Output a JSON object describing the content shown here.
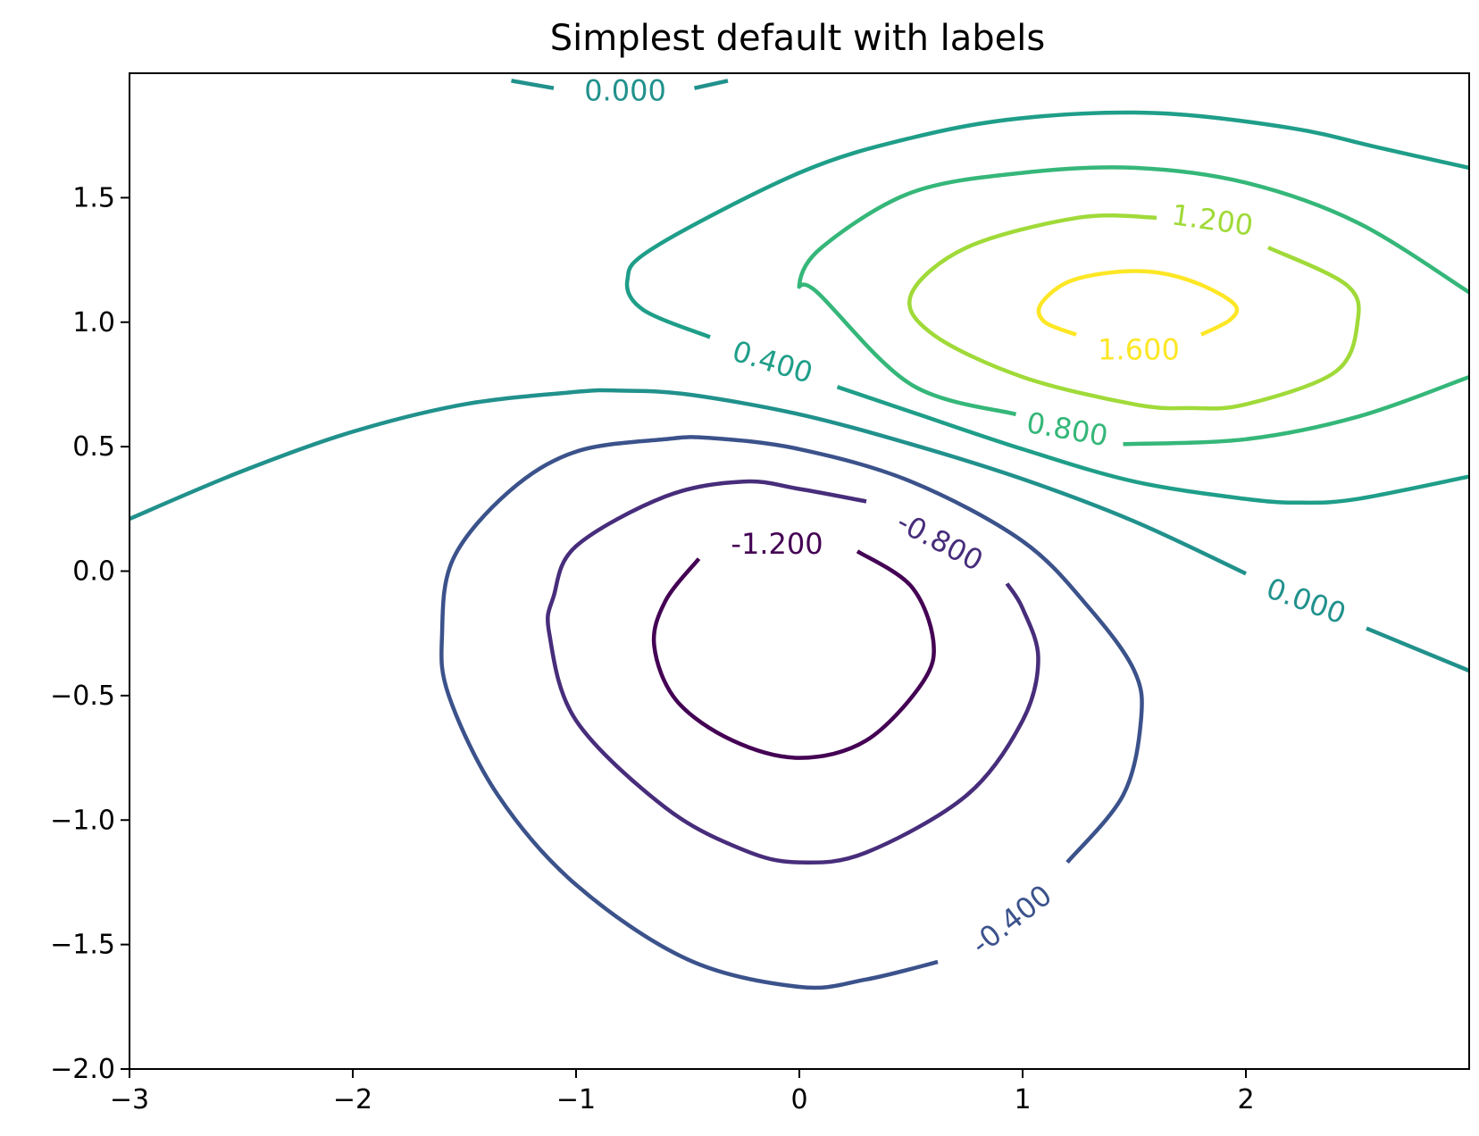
{
  "chart_data": {
    "type": "contour",
    "title": "Simplest default with labels",
    "xlabel": "",
    "ylabel": "",
    "xlim": [
      -3,
      3
    ],
    "ylim": [
      -2,
      2
    ],
    "xticks": [
      -3,
      -2,
      -1,
      0,
      1,
      2
    ],
    "xtick_labels": [
      "−3",
      "−2",
      "−1",
      "0",
      "1",
      "2"
    ],
    "yticks": [
      -2.0,
      -1.5,
      -1.0,
      -0.5,
      0.0,
      0.5,
      1.0,
      1.5
    ],
    "ytick_labels": [
      "−2.0",
      "−1.5",
      "−1.0",
      "−0.5",
      "0.0",
      "0.5",
      "1.0",
      "1.5"
    ],
    "grid": false,
    "colormap": "viridis",
    "levels": [
      {
        "value": -1.2,
        "label": "-1.200",
        "color": "#440154"
      },
      {
        "value": -0.8,
        "label": "-0.800",
        "color": "#472d7b"
      },
      {
        "value": -0.4,
        "label": "-0.400",
        "color": "#3b528b"
      },
      {
        "value": 0.0,
        "label": "0.000",
        "color": "#21918c"
      },
      {
        "value": 0.4,
        "label": "0.400",
        "color": "#1f9e89"
      },
      {
        "value": 0.8,
        "label": "0.800",
        "color": "#35b779"
      },
      {
        "value": 1.2,
        "label": "1.200",
        "color": "#a0da39"
      },
      {
        "value": 1.6,
        "label": "1.600",
        "color": "#fde725"
      }
    ],
    "label_positions": [
      {
        "text": "0.000",
        "x": -0.78,
        "y": 1.93,
        "angle": 0,
        "color": "#21918c"
      },
      {
        "text": "0.400",
        "x": -0.12,
        "y": 0.84,
        "angle": 17,
        "color": "#1f9e89"
      },
      {
        "text": "0.800",
        "x": 1.2,
        "y": 0.57,
        "angle": 10,
        "color": "#35b779"
      },
      {
        "text": "1.200",
        "x": 1.85,
        "y": 1.41,
        "angle": 8,
        "color": "#a0da39"
      },
      {
        "text": "1.600",
        "x": 1.52,
        "y": 0.89,
        "angle": 0,
        "color": "#fde725"
      },
      {
        "text": "-1.200",
        "x": -0.1,
        "y": 0.11,
        "angle": 0,
        "color": "#440154"
      },
      {
        "text": "-0.800",
        "x": 0.63,
        "y": 0.12,
        "angle": 28,
        "color": "#472d7b"
      },
      {
        "text": "-0.400",
        "x": 0.95,
        "y": -1.4,
        "angle": -38,
        "color": "#3b528b"
      },
      {
        "text": "0.000",
        "x": 2.27,
        "y": -0.12,
        "angle": 20,
        "color": "#21918c"
      }
    ],
    "contours": [
      {
        "level": 0.0,
        "color": "#21918c",
        "points": [
          [
            -1.29,
            1.97
          ],
          [
            -1.1,
            1.94
          ]
        ]
      },
      {
        "level": 0.0,
        "color": "#21918c",
        "points": [
          [
            -0.47,
            1.94
          ],
          [
            -0.32,
            1.97
          ]
        ]
      },
      {
        "level": 0.0,
        "color": "#21918c",
        "points": [
          [
            -3.0,
            0.21
          ],
          [
            -2.5,
            0.4
          ],
          [
            -2.0,
            0.56
          ],
          [
            -1.5,
            0.67
          ],
          [
            -1.0,
            0.72
          ],
          [
            -0.8,
            0.725
          ],
          [
            -0.5,
            0.71
          ],
          [
            0.0,
            0.63
          ],
          [
            0.5,
            0.51
          ],
          [
            1.0,
            0.37
          ],
          [
            1.5,
            0.2
          ],
          [
            2.0,
            -0.01
          ]
        ]
      },
      {
        "level": 0.0,
        "color": "#21918c",
        "points": [
          [
            2.54,
            -0.23
          ],
          [
            3.0,
            -0.4
          ]
        ]
      },
      {
        "level": 0.4,
        "color": "#1f9e89",
        "points": [
          [
            -0.4,
            0.94
          ],
          [
            -0.7,
            1.05
          ],
          [
            -0.77,
            1.17
          ],
          [
            -0.65,
            1.3
          ],
          [
            0.0,
            1.6
          ],
          [
            0.5,
            1.74
          ],
          [
            1.0,
            1.82
          ],
          [
            1.6,
            1.84
          ],
          [
            2.2,
            1.78
          ],
          [
            2.6,
            1.7
          ],
          [
            3.0,
            1.62
          ]
        ]
      },
      {
        "level": 0.4,
        "color": "#1f9e89",
        "points": [
          [
            0.17,
            0.74
          ],
          [
            0.5,
            0.64
          ],
          [
            1.0,
            0.49
          ],
          [
            1.5,
            0.36
          ],
          [
            2.0,
            0.29
          ],
          [
            2.25,
            0.275
          ],
          [
            2.5,
            0.29
          ],
          [
            3.0,
            0.38
          ]
        ]
      },
      {
        "level": 0.8,
        "color": "#35b779",
        "points": [
          [
            0.97,
            0.63
          ],
          [
            0.5,
            0.75
          ],
          [
            0.08,
            1.12
          ],
          [
            0.0,
            1.15
          ],
          [
            0.1,
            1.3
          ],
          [
            0.5,
            1.52
          ],
          [
            1.0,
            1.6
          ],
          [
            1.5,
            1.62
          ],
          [
            2.0,
            1.56
          ],
          [
            2.5,
            1.4
          ],
          [
            3.0,
            1.12
          ]
        ]
      },
      {
        "level": 0.8,
        "color": "#35b779",
        "points": [
          [
            1.45,
            0.51
          ],
          [
            2.0,
            0.53
          ],
          [
            2.5,
            0.62
          ],
          [
            3.0,
            0.78
          ]
        ]
      },
      {
        "level": 1.2,
        "color": "#a0da39",
        "points": [
          [
            1.6,
            1.42
          ],
          [
            1.25,
            1.42
          ],
          [
            0.75,
            1.3
          ],
          [
            0.5,
            1.11
          ],
          [
            0.6,
            0.95
          ],
          [
            1.0,
            0.78
          ],
          [
            1.5,
            0.67
          ],
          [
            1.75,
            0.655
          ],
          [
            2.0,
            0.67
          ],
          [
            2.4,
            0.8
          ],
          [
            2.5,
            1.0
          ],
          [
            2.45,
            1.15
          ],
          [
            2.1,
            1.3
          ]
        ]
      },
      {
        "level": 1.6,
        "color": "#fde725",
        "points": [
          [
            1.24,
            0.95
          ],
          [
            1.1,
            1.0
          ],
          [
            1.08,
            1.07
          ],
          [
            1.2,
            1.16
          ],
          [
            1.4,
            1.2
          ],
          [
            1.6,
            1.2
          ],
          [
            1.8,
            1.15
          ],
          [
            1.95,
            1.07
          ],
          [
            1.93,
            1.01
          ],
          [
            1.8,
            0.95
          ]
        ]
      },
      {
        "level": -1.2,
        "color": "#440154",
        "points": [
          [
            -0.45,
            0.05
          ],
          [
            -0.6,
            -0.12
          ],
          [
            -0.65,
            -0.3
          ],
          [
            -0.55,
            -0.52
          ],
          [
            -0.3,
            -0.68
          ],
          [
            0.0,
            -0.75
          ],
          [
            0.3,
            -0.68
          ],
          [
            0.55,
            -0.45
          ],
          [
            0.6,
            -0.28
          ],
          [
            0.5,
            -0.06
          ],
          [
            0.26,
            0.08
          ]
        ]
      },
      {
        "level": -0.8,
        "color": "#472d7b",
        "points": [
          [
            0.3,
            0.28
          ],
          [
            0.0,
            0.33
          ],
          [
            -0.25,
            0.36
          ],
          [
            -0.6,
            0.3
          ],
          [
            -1.0,
            0.1
          ],
          [
            -1.1,
            -0.1
          ],
          [
            -1.12,
            -0.25
          ],
          [
            -1.0,
            -0.6
          ],
          [
            -0.6,
            -0.95
          ],
          [
            -0.25,
            -1.12
          ],
          [
            0.0,
            -1.17
          ],
          [
            0.3,
            -1.13
          ],
          [
            0.75,
            -0.9
          ],
          [
            1.0,
            -0.6
          ],
          [
            1.07,
            -0.35
          ],
          [
            1.0,
            -0.15
          ],
          [
            0.93,
            -0.05
          ]
        ]
      },
      {
        "level": -0.4,
        "color": "#3b528b",
        "points": [
          [
            0.62,
            -1.57
          ],
          [
            0.3,
            -1.64
          ],
          [
            0.0,
            -1.67
          ],
          [
            -0.5,
            -1.56
          ],
          [
            -1.0,
            -1.26
          ],
          [
            -1.35,
            -0.9
          ],
          [
            -1.57,
            -0.5
          ],
          [
            -1.6,
            -0.25
          ],
          [
            -1.55,
            0.05
          ],
          [
            -1.3,
            0.32
          ],
          [
            -1.0,
            0.48
          ],
          [
            -0.6,
            0.53
          ],
          [
            -0.4,
            0.535
          ],
          [
            0.0,
            0.49
          ],
          [
            0.5,
            0.36
          ],
          [
            1.0,
            0.12
          ],
          [
            1.3,
            -0.15
          ],
          [
            1.5,
            -0.4
          ],
          [
            1.53,
            -0.6
          ],
          [
            1.45,
            -0.9
          ],
          [
            1.2,
            -1.17
          ]
        ]
      }
    ]
  }
}
